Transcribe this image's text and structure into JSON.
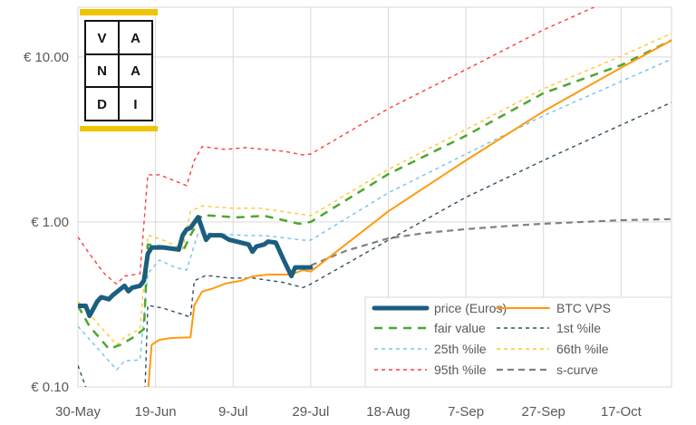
{
  "chart_data": {
    "type": "line",
    "title": "",
    "xlabel": "",
    "ylabel": "",
    "y_scale": "log",
    "ylim": [
      0.1,
      20
    ],
    "xlim": [
      "30-May",
      "30-Oct"
    ],
    "grid": true,
    "legend_position": "bottom-right",
    "x_tick_labels": [
      "30-May",
      "19-Jun",
      "9-Jul",
      "29-Jul",
      "18-Aug",
      "7-Sep",
      "27-Sep",
      "17-Oct"
    ],
    "y_tick_labels": [
      {
        "value": 10,
        "label": "€ 10.00"
      },
      {
        "value": 1,
        "label": "€ 1.00"
      },
      {
        "value": 0.1,
        "label": "€ 0.10"
      }
    ],
    "series": [
      {
        "name": "price (Euros)",
        "color": "#1b5e80",
        "style": "solid-thick",
        "points": [
          [
            "30-May",
            0.31
          ],
          [
            "1-Jun",
            0.31
          ],
          [
            "2-Jun",
            0.27
          ],
          [
            "4-Jun",
            0.33
          ],
          [
            "5-Jun",
            0.35
          ],
          [
            "7-Jun",
            0.34
          ],
          [
            "8-Jun",
            0.36
          ],
          [
            "11-Jun",
            0.41
          ],
          [
            "12-Jun",
            0.38
          ],
          [
            "13-Jun",
            0.4
          ],
          [
            "15-Jun",
            0.41
          ],
          [
            "16-Jun",
            0.44
          ],
          [
            "17-Jun",
            0.64
          ],
          [
            "18-Jun",
            0.7
          ],
          [
            "21-Jun",
            0.7
          ],
          [
            "25-Jun",
            0.68
          ],
          [
            "26-Jun",
            0.83
          ],
          [
            "27-Jun",
            0.9
          ],
          [
            "28-Jun",
            0.92
          ],
          [
            "30-Jun",
            1.07
          ],
          [
            "2-Jul",
            0.78
          ],
          [
            "3-Jul",
            0.83
          ],
          [
            "6-Jul",
            0.83
          ],
          [
            "8-Jul",
            0.78
          ],
          [
            "11-Jul",
            0.75
          ],
          [
            "13-Jul",
            0.73
          ],
          [
            "14-Jul",
            0.66
          ],
          [
            "15-Jul",
            0.71
          ],
          [
            "17-Jul",
            0.73
          ],
          [
            "18-Jul",
            0.76
          ],
          [
            "20-Jul",
            0.75
          ],
          [
            "22-Jul",
            0.59
          ],
          [
            "24-Jul",
            0.47
          ],
          [
            "25-Jul",
            0.53
          ],
          [
            "29-Jul",
            0.53
          ]
        ]
      },
      {
        "name": "BTC VPS",
        "color": "#ff9a0e",
        "style": "solid",
        "points": [
          [
            "17-Jun",
            0.09
          ],
          [
            "18-Jun",
            0.18
          ],
          [
            "20-Jun",
            0.193
          ],
          [
            "23-Jun",
            0.198
          ],
          [
            "28-Jun",
            0.2
          ],
          [
            "29-Jun",
            0.312
          ],
          [
            "1-Jul",
            0.378
          ],
          [
            "4-Jul",
            0.397
          ],
          [
            "7-Jul",
            0.423
          ],
          [
            "11-Jul",
            0.44
          ],
          [
            "14-Jul",
            0.468
          ],
          [
            "18-Jul",
            0.48
          ],
          [
            "24-Jul",
            0.48
          ],
          [
            "27-Jul",
            0.511
          ],
          [
            "29-Jul",
            0.5
          ],
          [
            "7-Aug",
            0.73
          ],
          [
            "18-Aug",
            1.16
          ],
          [
            "7-Sep",
            2.36
          ],
          [
            "27-Sep",
            4.68
          ],
          [
            "17-Oct",
            8.6
          ],
          [
            "30-Oct",
            12.6
          ]
        ]
      },
      {
        "name": "fair value",
        "color": "#4ea72e",
        "style": "long-dash",
        "points": [
          [
            "30-May",
            0.31
          ],
          [
            "2-Jun",
            0.233
          ],
          [
            "7-Jun",
            0.17
          ],
          [
            "10-Jun",
            0.18
          ],
          [
            "13-Jun",
            0.198
          ],
          [
            "16-Jun",
            0.224
          ],
          [
            "17-Jun",
            0.73
          ],
          [
            "21-Jun",
            0.71
          ],
          [
            "26-Jun",
            0.66
          ],
          [
            "28-Jun",
            0.83
          ],
          [
            "1-Jul",
            1.1
          ],
          [
            "4-Jul",
            1.09
          ],
          [
            "10-Jul",
            1.065
          ],
          [
            "17-Jul",
            1.09
          ],
          [
            "22-Jul",
            1.025
          ],
          [
            "26-Jul",
            0.975
          ],
          [
            "29-Jul",
            1.0
          ],
          [
            "18-Aug",
            1.95
          ],
          [
            "7-Sep",
            3.33
          ],
          [
            "27-Sep",
            6.03
          ],
          [
            "17-Oct",
            8.91
          ],
          [
            "30-Oct",
            12.6
          ]
        ]
      },
      {
        "name": "1st %ile",
        "color": "#2f4f60",
        "style": "short-dash",
        "points": [
          [
            "30-May",
            0.135
          ],
          [
            "1-Jun",
            0.1
          ],
          [
            "5-Jun",
            0.07
          ],
          [
            "16-Jun",
            0.06
          ],
          [
            "17-Jun",
            0.312
          ],
          [
            "21-Jun",
            0.3
          ],
          [
            "28-Jun",
            0.265
          ],
          [
            "29-Jun",
            0.44
          ],
          [
            "2-Jul",
            0.474
          ],
          [
            "8-Jul",
            0.457
          ],
          [
            "14-Jul",
            0.457
          ],
          [
            "22-Jul",
            0.43
          ],
          [
            "27-Jul",
            0.4
          ],
          [
            "29-Jul",
            0.42
          ],
          [
            "18-Aug",
            0.776
          ],
          [
            "7-Sep",
            1.41
          ],
          [
            "27-Sep",
            2.36
          ],
          [
            "17-Oct",
            3.87
          ],
          [
            "30-Oct",
            5.3
          ]
        ]
      },
      {
        "name": "25th %ile",
        "color": "#6ec5f0",
        "style": "short-dash",
        "points": [
          [
            "30-May",
            0.233
          ],
          [
            "9-Jun",
            0.127
          ],
          [
            "11-Jun",
            0.144
          ],
          [
            "15-Jun",
            0.146
          ],
          [
            "17-Jun",
            0.486
          ],
          [
            "20-Jun",
            0.588
          ],
          [
            "24-Jun",
            0.531
          ],
          [
            "27-Jun",
            0.511
          ],
          [
            "30-Jun",
            0.86
          ],
          [
            "5-Jul",
            0.848
          ],
          [
            "12-Jul",
            0.827
          ],
          [
            "17-Jul",
            0.827
          ],
          [
            "27-Jul",
            0.776
          ],
          [
            "29-Jul",
            0.776
          ],
          [
            "18-Aug",
            1.5
          ],
          [
            "7-Sep",
            2.58
          ],
          [
            "27-Sep",
            4.4
          ],
          [
            "17-Oct",
            7.1
          ],
          [
            "30-Oct",
            9.7
          ]
        ]
      },
      {
        "name": "66th %ile",
        "color": "#ffc72c",
        "style": "short-dash",
        "points": [
          [
            "30-May",
            0.33
          ],
          [
            "9-Jun",
            0.18
          ],
          [
            "11-Jun",
            0.2
          ],
          [
            "15-Jun",
            0.225
          ],
          [
            "17-Jun",
            0.83
          ],
          [
            "21-Jun",
            0.776
          ],
          [
            "26-Jun",
            0.684
          ],
          [
            "28-Jun",
            1.16
          ],
          [
            "1-Jul",
            1.25
          ],
          [
            "9-Jul",
            1.21
          ],
          [
            "16-Jul",
            1.21
          ],
          [
            "27-Jul",
            1.11
          ],
          [
            "29-Jul",
            1.09
          ],
          [
            "18-Aug",
            2.08
          ],
          [
            "7-Sep",
            3.63
          ],
          [
            "27-Sep",
            6.42
          ],
          [
            "17-Oct",
            10.1
          ],
          [
            "30-Oct",
            13.9
          ]
        ]
      },
      {
        "name": "95th %ile",
        "color": "#ff3b3b",
        "style": "short-dash",
        "points": [
          [
            "30-May",
            0.81
          ],
          [
            "2-Jun",
            0.64
          ],
          [
            "6-Jun",
            0.48
          ],
          [
            "9-Jun",
            0.42
          ],
          [
            "11-Jun",
            0.47
          ],
          [
            "15-Jun",
            0.486
          ],
          [
            "17-Jun",
            1.93
          ],
          [
            "20-Jun",
            1.93
          ],
          [
            "27-Jun",
            1.66
          ],
          [
            "29-Jun",
            2.36
          ],
          [
            "1-Jul",
            2.86
          ],
          [
            "7-Jul",
            2.75
          ],
          [
            "12-Jul",
            2.82
          ],
          [
            "22-Jul",
            2.68
          ],
          [
            "27-Jul",
            2.55
          ],
          [
            "29-Jul",
            2.58
          ],
          [
            "18-Aug",
            4.86
          ],
          [
            "7-Sep",
            8.38
          ],
          [
            "27-Sep",
            14.6
          ],
          [
            "10-Oct",
            20
          ],
          [
            "30-Oct",
            30
          ]
        ]
      },
      {
        "name": "s-curve",
        "color": "#808080",
        "style": "dash",
        "points": [
          [
            "29-Jul",
            0.545
          ],
          [
            "7-Aug",
            0.667
          ],
          [
            "18-Aug",
            0.796
          ],
          [
            "28-Aug",
            0.86
          ],
          [
            "7-Sep",
            0.904
          ],
          [
            "19-Sep",
            0.95
          ],
          [
            "27-Sep",
            0.975
          ],
          [
            "17-Oct",
            1.025
          ],
          [
            "30-Oct",
            1.04
          ]
        ]
      }
    ]
  },
  "logo": {
    "letters": [
      "V",
      "A",
      "N",
      "A",
      "D",
      "I"
    ],
    "accent": "#f0c400"
  }
}
